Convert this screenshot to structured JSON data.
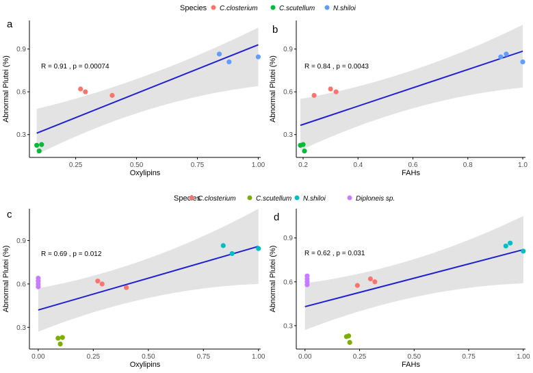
{
  "legends": [
    {
      "title": "Species",
      "items": [
        {
          "label": "C.closterium",
          "color": "#F8766D"
        },
        {
          "label": "C.scutellum",
          "color": "#00BA38"
        },
        {
          "label": "N.shiloi",
          "color": "#619CFF"
        }
      ]
    },
    {
      "title": "Species",
      "items": [
        {
          "label": "C.closterium",
          "color": "#F8766D"
        },
        {
          "label": "C.scutellum",
          "color": "#7CAE00"
        },
        {
          "label": "N.shiloi",
          "color": "#00BFC4"
        },
        {
          "label": "Diploneis sp.",
          "color": "#C77CFF"
        }
      ]
    }
  ],
  "chart_data": [
    {
      "panel": "a",
      "type": "scatter",
      "xlabel": "Oxylipins",
      "ylabel": "Abnormal Plutei (%)",
      "xlim": [
        0.06,
        1.01
      ],
      "ylim": [
        0.14,
        1.1
      ],
      "xticks": [
        "0.25",
        "0.50",
        "0.75",
        "1.00"
      ],
      "xtick_values": [
        0.25,
        0.5,
        0.75,
        1.0
      ],
      "yticks": [
        "0.3",
        "0.6",
        "0.9"
      ],
      "ytick_values": [
        0.3,
        0.6,
        0.9
      ],
      "annotation": "R = 0.91 , p = 0.00074",
      "fit": {
        "x": [
          0.09,
          1.0
        ],
        "y": [
          0.31,
          0.93
        ],
        "band_lower": [
          0.16,
          0.64
        ],
        "band_upper": [
          0.48,
          1.05
        ]
      },
      "series": [
        {
          "name": "C.closterium",
          "color": "#F8766D",
          "points": [
            [
              0.27,
              0.62
            ],
            [
              0.29,
              0.6
            ],
            [
              0.4,
              0.575
            ]
          ]
        },
        {
          "name": "C.scutellum",
          "color": "#00BA38",
          "points": [
            [
              0.09,
              0.225
            ],
            [
              0.11,
              0.23
            ],
            [
              0.1,
              0.185
            ]
          ]
        },
        {
          "name": "N.shiloi",
          "color": "#619CFF",
          "points": [
            [
              0.84,
              0.865
            ],
            [
              0.88,
              0.81
            ],
            [
              1.0,
              0.845
            ]
          ]
        }
      ]
    },
    {
      "panel": "b",
      "type": "scatter",
      "xlabel": "FAHs",
      "ylabel": "Abnormal Plutei (%)",
      "xlim": [
        0.175,
        1.01
      ],
      "ylim": [
        0.14,
        1.1
      ],
      "xticks": [
        "0.2",
        "0.4",
        "0.6",
        "0.8",
        "1.0"
      ],
      "xtick_values": [
        0.2,
        0.4,
        0.6,
        0.8,
        1.0
      ],
      "yticks": [
        "0.3",
        "0.6",
        "0.9"
      ],
      "ytick_values": [
        0.3,
        0.6,
        0.9
      ],
      "annotation": "R = 0.84 , p = 0.0043",
      "fit": {
        "x": [
          0.19,
          1.0
        ],
        "y": [
          0.365,
          0.885
        ],
        "band_lower": [
          0.19,
          0.63
        ],
        "band_upper": [
          0.55,
          1.07
        ]
      },
      "series": [
        {
          "name": "C.closterium",
          "color": "#F8766D",
          "points": [
            [
              0.24,
              0.575
            ],
            [
              0.3,
              0.62
            ],
            [
              0.32,
              0.6
            ]
          ]
        },
        {
          "name": "C.scutellum",
          "color": "#00BA38",
          "points": [
            [
              0.19,
              0.225
            ],
            [
              0.2,
              0.23
            ],
            [
              0.205,
              0.185
            ]
          ]
        },
        {
          "name": "N.shiloi",
          "color": "#619CFF",
          "points": [
            [
              0.92,
              0.845
            ],
            [
              0.94,
              0.865
            ],
            [
              1.0,
              0.81
            ]
          ]
        }
      ]
    },
    {
      "panel": "c",
      "type": "scatter",
      "xlabel": "Oxylipins",
      "ylabel": "Abnormal Plutei (%)",
      "xlim": [
        -0.04,
        1.01
      ],
      "ylim": [
        0.15,
        1.12
      ],
      "xticks": [
        "0.00",
        "0.25",
        "0.50",
        "0.75",
        "1.00"
      ],
      "xtick_values": [
        0.0,
        0.25,
        0.5,
        0.75,
        1.0
      ],
      "yticks": [
        "0.3",
        "0.6",
        "0.9"
      ],
      "ytick_values": [
        0.3,
        0.6,
        0.9
      ],
      "annotation": "R = 0.69 , p = 0.012",
      "fit": {
        "x": [
          0.0,
          1.0
        ],
        "y": [
          0.42,
          0.86
        ],
        "band_lower": [
          0.27,
          0.6
        ],
        "band_upper": [
          0.57,
          1.12
        ]
      },
      "series": [
        {
          "name": "C.closterium",
          "color": "#F8766D",
          "points": [
            [
              0.27,
              0.62
            ],
            [
              0.29,
              0.6
            ],
            [
              0.4,
              0.575
            ]
          ]
        },
        {
          "name": "C.scutellum",
          "color": "#7CAE00",
          "points": [
            [
              0.09,
              0.225
            ],
            [
              0.11,
              0.23
            ],
            [
              0.1,
              0.185
            ]
          ]
        },
        {
          "name": "N.shiloi",
          "color": "#00BFC4",
          "points": [
            [
              0.84,
              0.865
            ],
            [
              0.88,
              0.81
            ],
            [
              1.0,
              0.845
            ]
          ]
        },
        {
          "name": "Diploneis sp.",
          "color": "#C77CFF",
          "points": [
            [
              0.0,
              0.64
            ],
            [
              0.0,
              0.62
            ],
            [
              0.0,
              0.6
            ],
            [
              0.0,
              0.58
            ]
          ]
        }
      ]
    },
    {
      "panel": "d",
      "type": "scatter",
      "xlabel": "FAHs",
      "ylabel": "Abnormal Plutei (%)",
      "xlim": [
        -0.04,
        1.01
      ],
      "ylim": [
        0.14,
        1.1
      ],
      "xticks": [
        "0.00",
        "0.25",
        "0.50",
        "0.75",
        "1.00"
      ],
      "xtick_values": [
        0.0,
        0.25,
        0.5,
        0.75,
        1.0
      ],
      "yticks": [
        "0.3",
        "0.6",
        "0.9"
      ],
      "ytick_values": [
        0.3,
        0.6,
        0.9
      ],
      "annotation": "R = 0.62 , p = 0.031",
      "fit": {
        "x": [
          0.0,
          1.0
        ],
        "y": [
          0.43,
          0.82
        ],
        "band_lower": [
          0.27,
          0.59
        ],
        "band_upper": [
          0.59,
          1.05
        ]
      },
      "series": [
        {
          "name": "C.closterium",
          "color": "#F8766D",
          "points": [
            [
              0.24,
              0.575
            ],
            [
              0.3,
              0.62
            ],
            [
              0.32,
              0.6
            ]
          ]
        },
        {
          "name": "C.scutellum",
          "color": "#7CAE00",
          "points": [
            [
              0.19,
              0.225
            ],
            [
              0.2,
              0.23
            ],
            [
              0.205,
              0.185
            ]
          ]
        },
        {
          "name": "N.shiloi",
          "color": "#00BFC4",
          "points": [
            [
              0.92,
              0.845
            ],
            [
              0.94,
              0.865
            ],
            [
              1.0,
              0.81
            ]
          ]
        },
        {
          "name": "Diploneis sp.",
          "color": "#C77CFF",
          "points": [
            [
              0.01,
              0.64
            ],
            [
              0.01,
              0.62
            ],
            [
              0.01,
              0.6
            ],
            [
              0.01,
              0.58
            ]
          ]
        }
      ]
    }
  ]
}
